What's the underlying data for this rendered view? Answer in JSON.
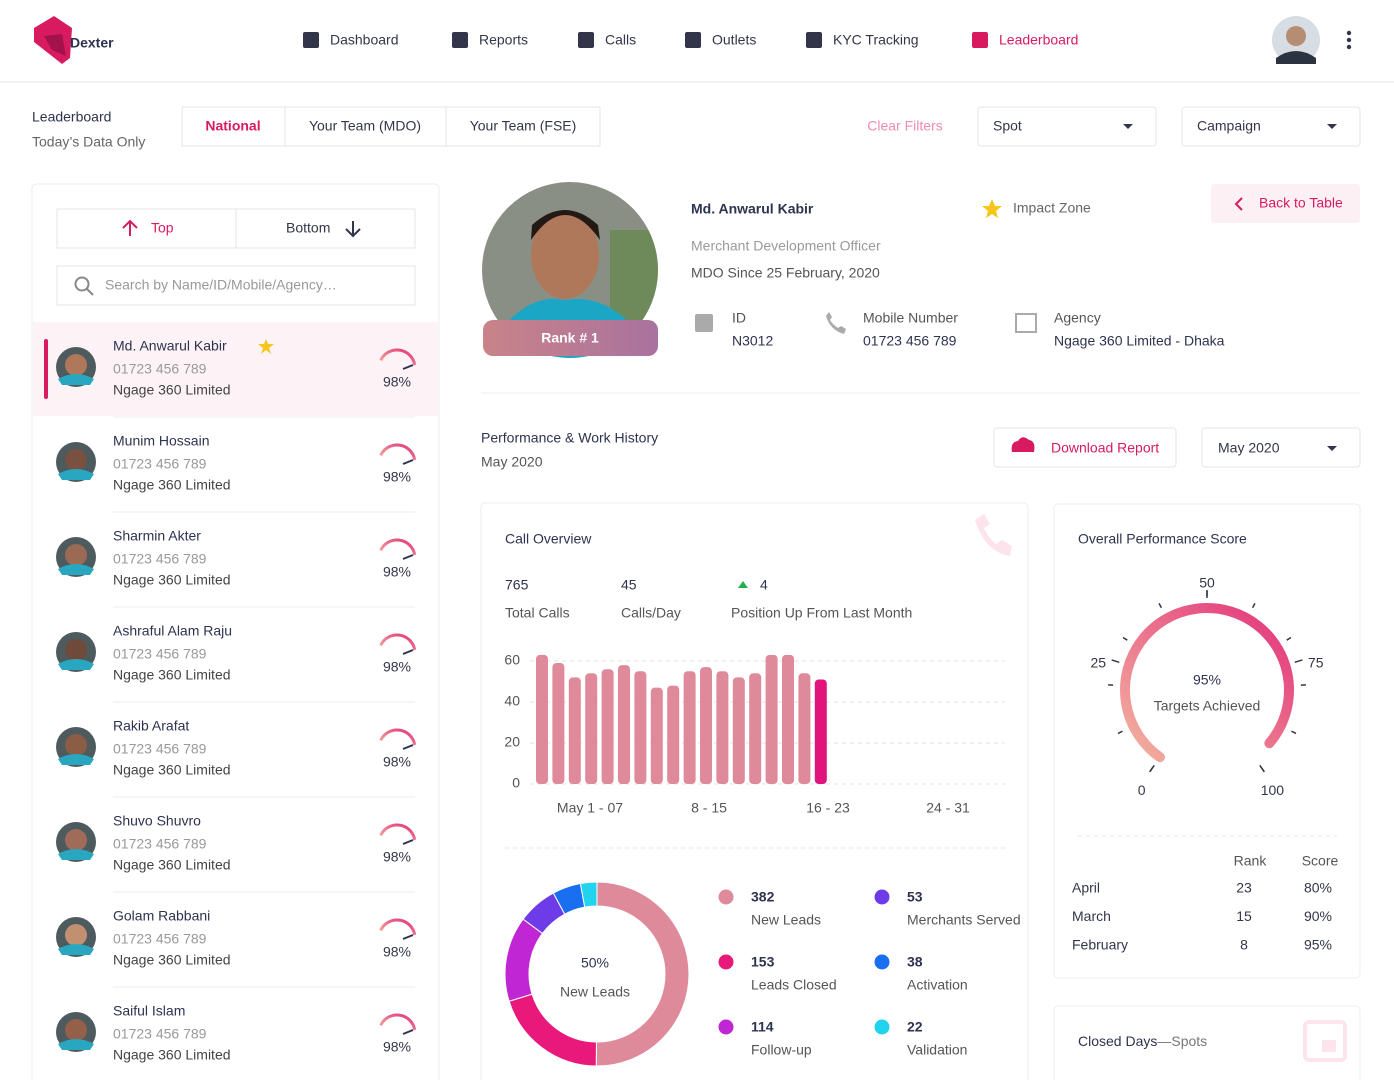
{
  "header": {
    "logo": "Dexter",
    "nav": [
      "Dashboard",
      "Reports",
      "Calls",
      "Outlets",
      "KYC Tracking",
      "Leaderboard"
    ],
    "active_index": 5
  },
  "toolbar": {
    "title": "Leaderboard",
    "subtitle": "Today’s Data Only",
    "tabs": [
      "National",
      "Your Team (MDO)",
      "Your Team (FSE)"
    ],
    "active_tab": 0,
    "clear_filters": "Clear Filters",
    "filters": [
      "Spot",
      "Campaign"
    ]
  },
  "leaderboard": {
    "sort": [
      "Top",
      "Bottom"
    ],
    "search_placeholder": "Search by Name/ID/Mobile/Agency…",
    "people": [
      {
        "name": "Md. Anwarul Kabir",
        "mobile": "01723 456 789",
        "agency": "Ngage 360 Limited",
        "score": "98%"
      },
      {
        "name": "Munim Hossain",
        "mobile": "01723 456 789",
        "agency": "Ngage 360 Limited",
        "score": "98%"
      },
      {
        "name": "Sharmin Akter",
        "mobile": "01723 456 789",
        "agency": "Ngage 360 Limited",
        "score": "98%"
      },
      {
        "name": "Ashraful Alam Raju",
        "mobile": "01723 456 789",
        "agency": "Ngage 360 Limited",
        "score": "98%"
      },
      {
        "name": "Rakib Arafat",
        "mobile": "01723 456 789",
        "agency": "Ngage 360 Limited",
        "score": "98%"
      },
      {
        "name": "Shuvo Shuvro",
        "mobile": "01723 456 789",
        "agency": "Ngage 360 Limited",
        "score": "98%"
      },
      {
        "name": "Golam Rabbani",
        "mobile": "01723 456 789",
        "agency": "Ngage 360 Limited",
        "score": "98%"
      },
      {
        "name": "Saiful Islam",
        "mobile": "01723 456 789",
        "agency": "Ngage 360 Limited",
        "score": "98%"
      }
    ]
  },
  "profile": {
    "name": "Md. Anwarul Kabir",
    "zone": "Impact Zone",
    "role": "Merchant Development Officer",
    "since": "MDO Since 25 February, 2020",
    "rank": "Rank # 1",
    "back": "Back to Table",
    "fields": [
      {
        "label": "ID",
        "value": "N3012"
      },
      {
        "label": "Mobile Number",
        "value": "01723 456 789"
      },
      {
        "label": "Agency",
        "value": "Ngage 360 Limited - Dhaka"
      }
    ]
  },
  "performance": {
    "title": "Performance & Work History",
    "period": "May 2020",
    "download": "Download Report",
    "month": "May 2020"
  },
  "call_overview": {
    "title": "Call Overview",
    "stats": [
      {
        "value": 765,
        "label": "Total Calls"
      },
      {
        "value": 45,
        "label": "Calls/Day"
      },
      {
        "value": 4,
        "label": "Position Up From Last Month"
      }
    ],
    "chart": {
      "values": [
        63,
        59,
        52,
        54,
        56,
        58,
        55,
        47,
        48,
        55,
        57,
        55,
        52,
        54,
        63,
        63,
        54,
        51
      ],
      "color": "#de8a9b",
      "highlight_color": "#e0147a",
      "highlight_index": 17,
      "ylim": [
        0,
        60
      ],
      "yticks": [
        0,
        20,
        40,
        60
      ],
      "x_labels": [
        "May 1 - 07",
        "8 - 15",
        "16 - 23",
        "24 - 31"
      ]
    },
    "breakdown": {
      "center_value": "50%",
      "center_label": "New Leads",
      "items": [
        {
          "name": "New Leads",
          "value": 382,
          "color": "#de8a9b"
        },
        {
          "name": "Leads Closed",
          "value": 153,
          "color": "#e8197a"
        },
        {
          "name": "Follow-up",
          "value": 114,
          "color": "#c026d3"
        },
        {
          "name": "Merchants Served",
          "value": 53,
          "color": "#6d3be8"
        },
        {
          "name": "Activation",
          "value": 38,
          "color": "#1a6ff0"
        },
        {
          "name": "Validation",
          "value": 22,
          "color": "#22d3ee"
        }
      ]
    }
  },
  "overall_score": {
    "title": "Overall Performance Score",
    "score": 95,
    "score_label": "95%",
    "caption": "Targets Achieved",
    "ticks": [
      0,
      25,
      50,
      75,
      100
    ],
    "history": {
      "columns": [
        "Rank",
        "Score"
      ],
      "rows": [
        {
          "month": "April",
          "rank": 23,
          "score": "80%"
        },
        {
          "month": "March",
          "rank": 15,
          "score": "90%"
        },
        {
          "month": "February",
          "rank": 8,
          "score": "95%"
        }
      ]
    }
  },
  "closed_days": {
    "title": "Closed Days",
    "subtitle": "—Spots"
  }
}
